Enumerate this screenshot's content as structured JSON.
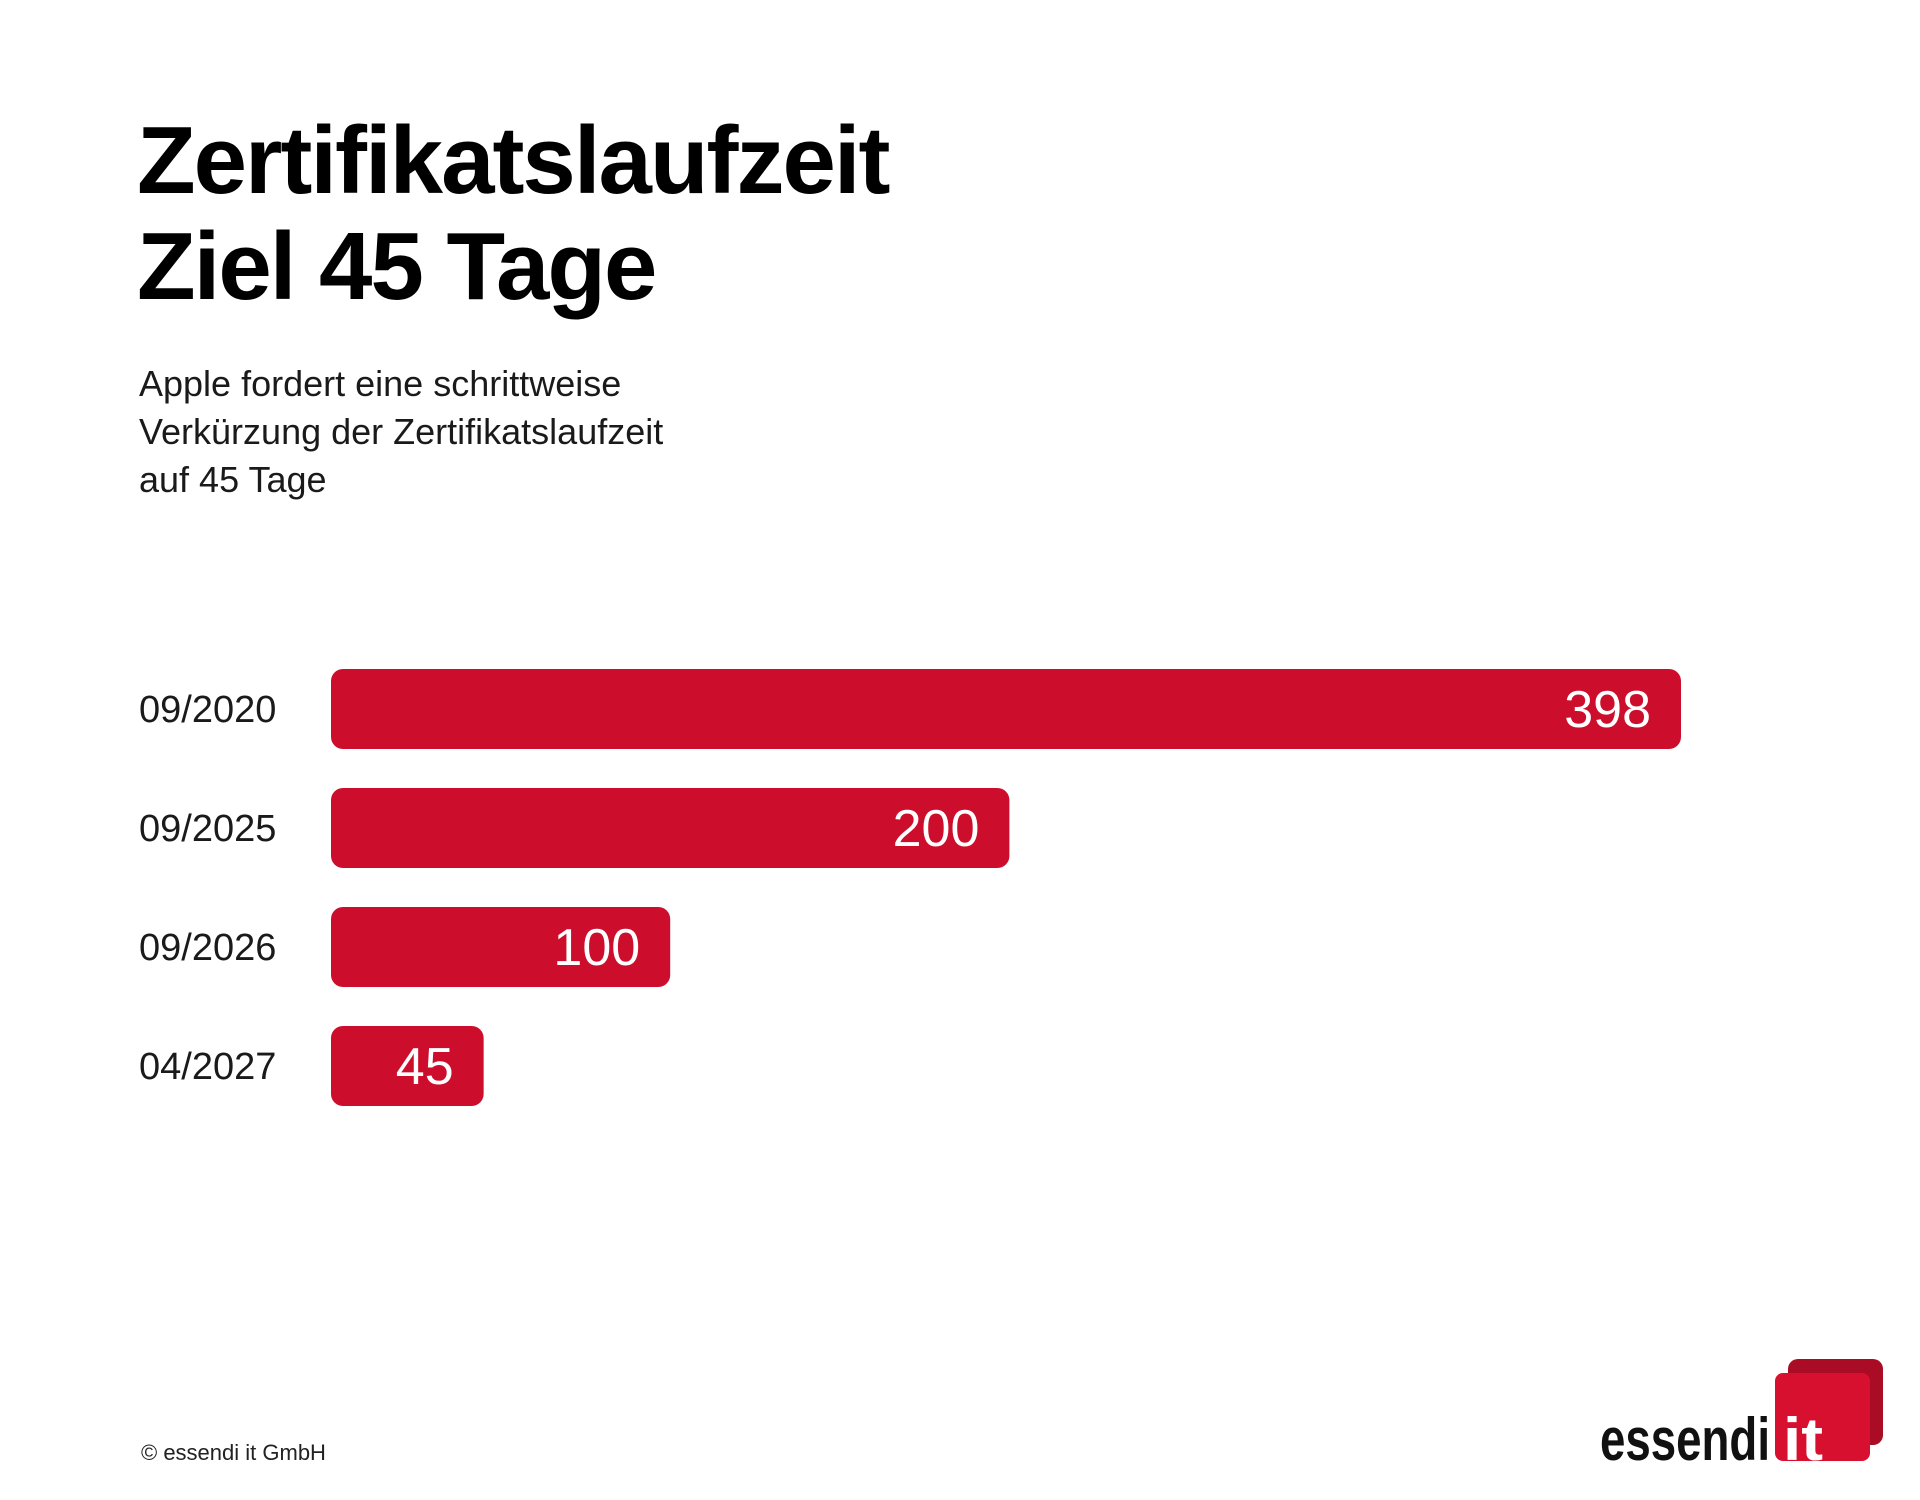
{
  "title_line1": "Zertifikatslaufzeit",
  "title_line2": "Ziel 45 Tage",
  "subtitle_line1": "Apple fordert eine schrittweise",
  "subtitle_line2": "Verkürzung der Zertifikatslaufzeit",
  "subtitle_line3": "auf 45 Tage",
  "footer": "© essendi it GmbH",
  "logo": {
    "word": "essendi",
    "mark": "it"
  },
  "colors": {
    "bar": "#cc0e2c",
    "bar_label": "#ffffff",
    "category_label": "#1a1a1a",
    "logo_text": "#111111",
    "logo_box": "#d8102f",
    "logo_box_shadow": "#a90c24"
  },
  "chart_data": {
    "type": "bar",
    "orientation": "horizontal",
    "categories": [
      "09/2020",
      "09/2025",
      "09/2026",
      "04/2027"
    ],
    "values": [
      398,
      200,
      100,
      45
    ],
    "data_labels": true,
    "grid": false,
    "legend": "none"
  }
}
